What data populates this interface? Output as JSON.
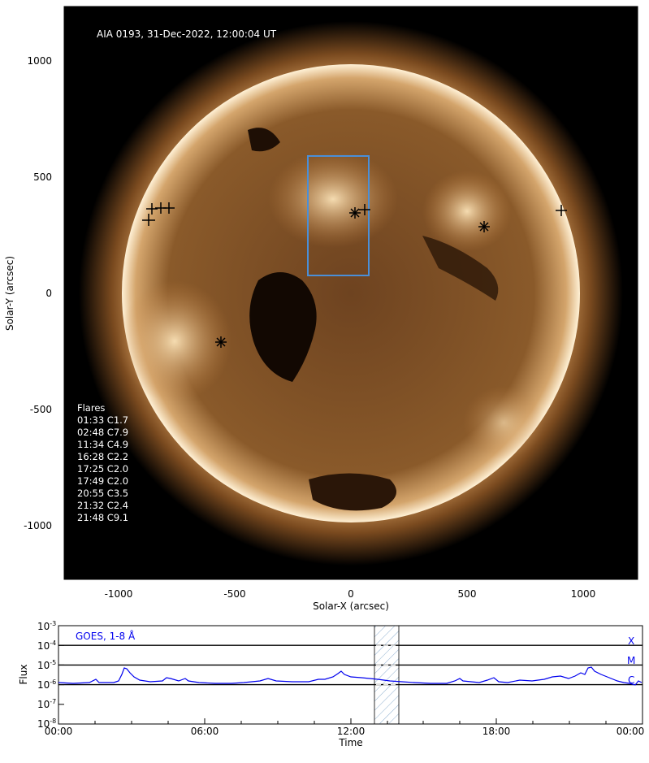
{
  "image_header": "AIA 0193, 31-Dec-2022, 12:00:04 UT",
  "solar_image": {
    "x_axis_label": "Solar-X (arcsec)",
    "y_axis_label": "Solar-Y (arcsec)",
    "x_tick_labels": [
      "-1000",
      "-500",
      "0",
      "500",
      "1000"
    ],
    "y_tick_labels": [
      "1000",
      "500",
      "0",
      "-500",
      "-1000"
    ],
    "colors": {
      "background": "#000000",
      "sun_disk": "#7a4a1f",
      "corona": "#e8b877",
      "box": "#4a8fd8",
      "marker": "#ffffff"
    }
  },
  "flares": {
    "heading": "Flares",
    "items": [
      "01:33 C1.7",
      "02:48 C7.9",
      "11:34 C4.9",
      "16:28 C2.2",
      "17:25 C2.0",
      "17:49 C2.0",
      "20:55 C3.5",
      "21:32 C2.4",
      "21:48 C9.1"
    ]
  },
  "goes": {
    "label": "GOES, 1-8 Å",
    "x_axis_label": "Time",
    "y_axis_label": "Flux",
    "x_tick_labels": [
      "00:00",
      "06:00",
      "12:00",
      "18:00",
      "00:00"
    ],
    "y_tick_labels": [
      {
        "base": "10",
        "exp": "-3"
      },
      {
        "base": "10",
        "exp": "-4"
      },
      {
        "base": "10",
        "exp": "-5"
      },
      {
        "base": "10",
        "exp": "-6"
      },
      {
        "base": "10",
        "exp": "-7"
      },
      {
        "base": "10",
        "exp": "-8"
      }
    ],
    "class_labels": [
      "X",
      "M",
      "C"
    ],
    "line_color": "#0000ee"
  }
}
